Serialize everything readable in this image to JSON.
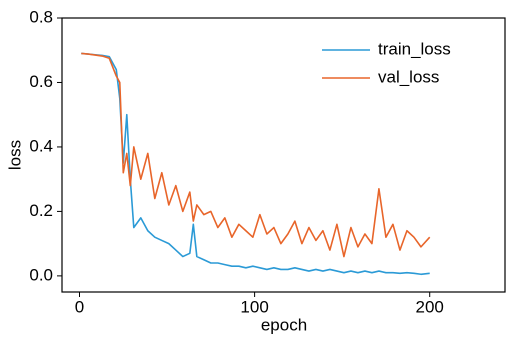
{
  "chart_data": {
    "type": "line",
    "xlabel": "epoch",
    "ylabel": "loss",
    "x": [
      1,
      5,
      9,
      13,
      17,
      21,
      23,
      25,
      27,
      29,
      31,
      35,
      39,
      43,
      47,
      51,
      55,
      59,
      63,
      65,
      67,
      71,
      75,
      79,
      83,
      87,
      91,
      95,
      99,
      103,
      107,
      111,
      115,
      119,
      123,
      127,
      131,
      135,
      139,
      143,
      147,
      151,
      155,
      159,
      163,
      167,
      171,
      175,
      179,
      183,
      187,
      191,
      195,
      200
    ],
    "series": [
      {
        "name": "train_loss",
        "color": "#2b9ad6",
        "values": [
          0.69,
          0.688,
          0.686,
          0.684,
          0.68,
          0.64,
          0.55,
          0.35,
          0.5,
          0.3,
          0.15,
          0.18,
          0.14,
          0.12,
          0.11,
          0.1,
          0.08,
          0.06,
          0.07,
          0.16,
          0.06,
          0.05,
          0.04,
          0.04,
          0.035,
          0.03,
          0.03,
          0.025,
          0.03,
          0.025,
          0.02,
          0.025,
          0.02,
          0.02,
          0.025,
          0.02,
          0.015,
          0.02,
          0.015,
          0.02,
          0.015,
          0.01,
          0.015,
          0.01,
          0.015,
          0.01,
          0.015,
          0.01,
          0.01,
          0.008,
          0.01,
          0.008,
          0.005,
          0.008
        ]
      },
      {
        "name": "val_loss",
        "color": "#e8652a",
        "values": [
          0.69,
          0.688,
          0.685,
          0.682,
          0.675,
          0.62,
          0.6,
          0.32,
          0.38,
          0.28,
          0.4,
          0.3,
          0.38,
          0.24,
          0.32,
          0.22,
          0.28,
          0.2,
          0.26,
          0.17,
          0.22,
          0.19,
          0.2,
          0.15,
          0.18,
          0.12,
          0.16,
          0.14,
          0.12,
          0.19,
          0.13,
          0.15,
          0.1,
          0.13,
          0.17,
          0.1,
          0.15,
          0.11,
          0.14,
          0.08,
          0.16,
          0.06,
          0.15,
          0.09,
          0.13,
          0.1,
          0.27,
          0.12,
          0.16,
          0.08,
          0.14,
          0.12,
          0.09,
          0.12
        ]
      }
    ],
    "xlim": [
      -10,
      243
    ],
    "xticks": [
      0,
      100,
      200
    ],
    "ylim": [
      -0.05,
      0.8
    ],
    "yticks": [
      {
        "value": 0,
        "label": "0.0"
      },
      0.2,
      0.4,
      0.6,
      0.8
    ],
    "grid": false,
    "legend": "upper right"
  }
}
